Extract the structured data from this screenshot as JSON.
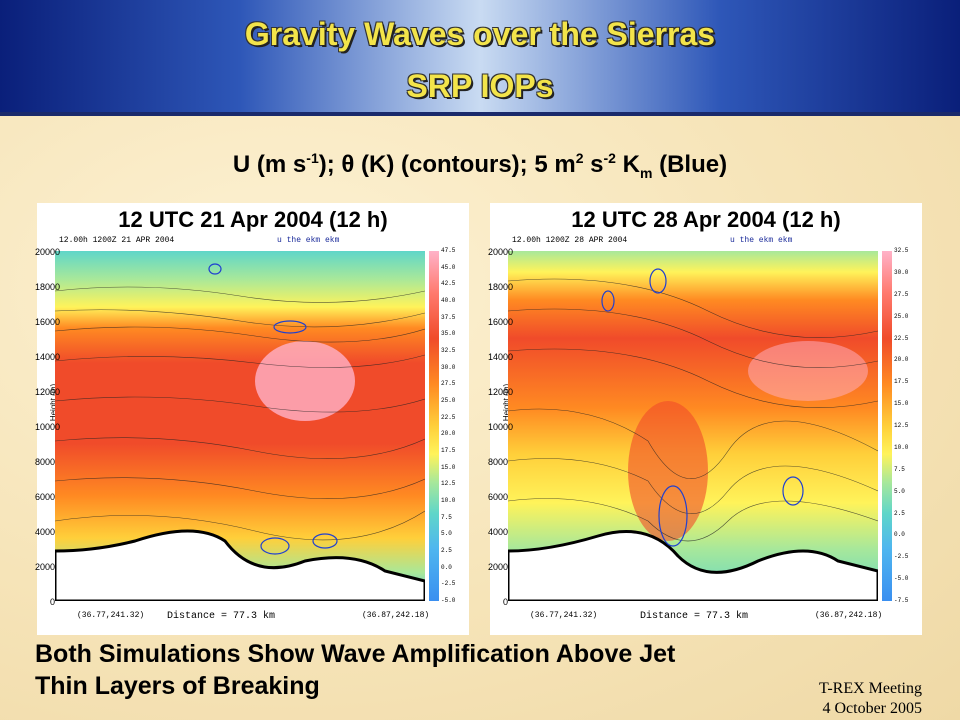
{
  "header": {
    "line1": "Gravity Waves over the Sierras",
    "line2": "SRP IOPs"
  },
  "subtitle": {
    "u": "U (m s",
    "u_sup": "-1",
    "theta": "); θ (K) (contours); 5 m",
    "m2": "2",
    "s": " s",
    "s_sup": "-2",
    "km": " K",
    "km_sub": "m",
    "blue": " (Blue)"
  },
  "panels": [
    {
      "title": "12 UTC 21 Apr 2004 (12 h)",
      "header_left": "12.00h   1200Z 21 APR 2004",
      "header_mid": "u      the     ekm  ekm",
      "y_label": "Height (m)",
      "distance": "Distance =     77.3 km",
      "coord_left": "(36.77,241.32)",
      "coord_right": "(36.87,242.18)"
    },
    {
      "title": "12 UTC 28 Apr 2004 (12 h)",
      "header_left": "12.00h   1200Z 28 APR 2004",
      "header_mid": "u      the     ekm  ekm",
      "y_label": "Height (m)",
      "distance": "Distance =     77.3 km",
      "coord_left": "(36.77,241.32)",
      "coord_right": "(36.87,242.18)"
    }
  ],
  "y_ticks": [
    "20000",
    "18000",
    "16000",
    "14000",
    "12000",
    "10000",
    "8000",
    "6000",
    "4000",
    "2000",
    "0"
  ],
  "colorbar_left": [
    "47.5",
    "45.0",
    "42.5",
    "40.0",
    "37.5",
    "35.0",
    "32.5",
    "30.0",
    "27.5",
    "25.0",
    "22.5",
    "20.0",
    "17.5",
    "15.0",
    "12.5",
    "10.0",
    "7.5",
    "5.0",
    "2.5",
    "0.0",
    "-2.5",
    "-5.0"
  ],
  "colorbar_right": [
    "32.5",
    "30.0",
    "27.5",
    "25.0",
    "22.5",
    "20.0",
    "17.5",
    "15.0",
    "12.5",
    "10.0",
    "7.5",
    "5.0",
    "2.5",
    "0.0",
    "-2.5",
    "-5.0",
    "-7.5"
  ],
  "bottom": {
    "line1": "Both Simulations Show Wave Amplification Above Jet",
    "line2": "Thin Layers of Breaking"
  },
  "footer": {
    "line1": "T-REX Meeting",
    "line2": "4 October 2005"
  }
}
